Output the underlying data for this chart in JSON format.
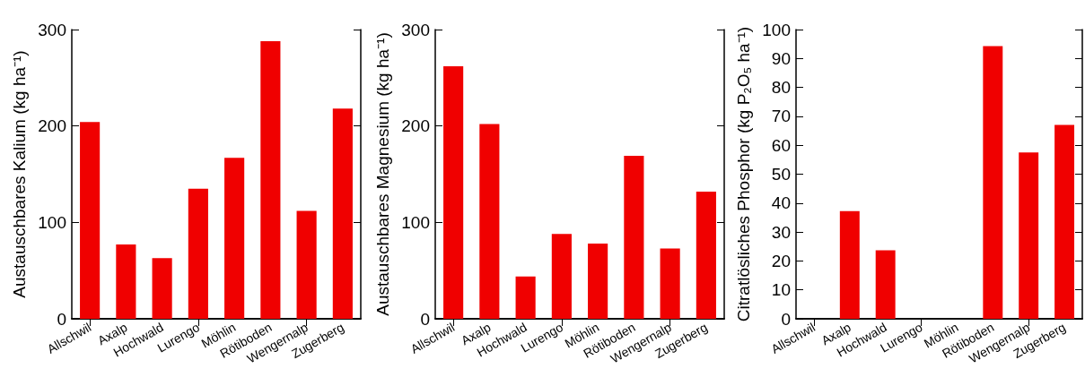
{
  "chart_data": [
    {
      "type": "bar",
      "ylabel": "Austauschbares Kalium (kg ha⁻¹)",
      "categories": [
        "Allschwil",
        "Axalp",
        "Hochwald",
        "Lurengo",
        "Möhlin",
        "Rötiboden",
        "Wengernalp",
        "Zugerberg"
      ],
      "values": [
        204,
        77,
        63,
        135,
        167,
        288,
        112,
        218
      ],
      "color": "#f00000",
      "ylim": [
        0,
        300
      ],
      "yticks": [
        0,
        100,
        200,
        300
      ],
      "grid": false
    },
    {
      "type": "bar",
      "ylabel": "Austauschbares Magnesium (kg ha⁻¹)",
      "categories": [
        "Allschwil",
        "Axalp",
        "Hochwald",
        "Lurengo",
        "Möhlin",
        "Rötiboden",
        "Wengernalp",
        "Zugerberg"
      ],
      "values": [
        262,
        202,
        44,
        88,
        78,
        169,
        73,
        132
      ],
      "color": "#f00000",
      "ylim": [
        0,
        300
      ],
      "yticks": [
        0,
        100,
        200,
        300
      ],
      "grid": false
    },
    {
      "type": "bar",
      "ylabel": "Citratlösliches Phosphor (kg P₂O₅ ha⁻¹)",
      "categories": [
        "Allschwil",
        "Axalp",
        "Hochwald",
        "Lurengo",
        "Möhlin",
        "Rötiboden",
        "Wengernalp",
        "Zugerberg"
      ],
      "values": [
        null,
        37.2,
        23.7,
        null,
        null,
        94.3,
        57.5,
        67
      ],
      "color": "#f00000",
      "ylim": [
        0,
        100
      ],
      "yticks": [
        0,
        10,
        20,
        30,
        40,
        50,
        60,
        70,
        80,
        90,
        100
      ],
      "grid": false
    }
  ]
}
